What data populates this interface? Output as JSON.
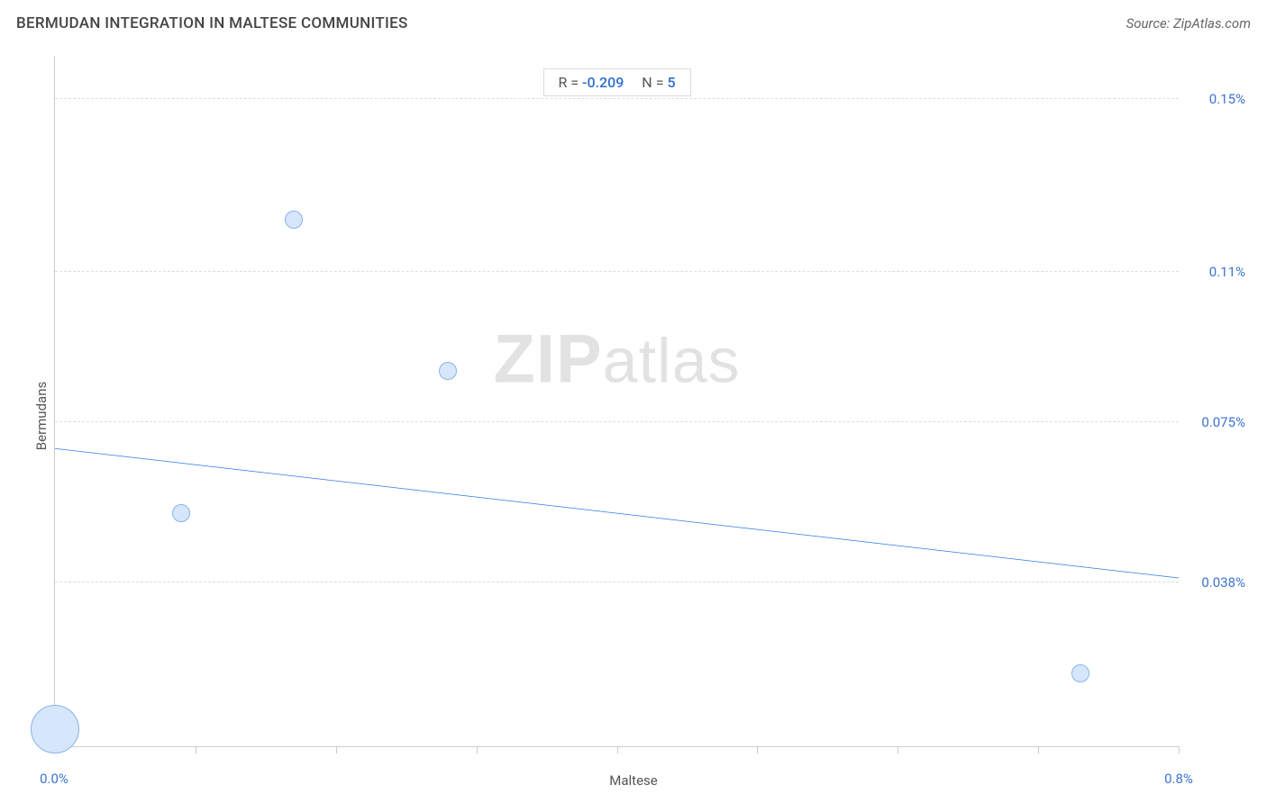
{
  "header": {
    "title": "BERMUDAN INTEGRATION IN MALTESE COMMUNITIES",
    "source": "Source: ZipAtlas.com"
  },
  "chart": {
    "type": "scatter",
    "x_label": "Maltese",
    "y_label": "Bermudans",
    "background_color": "#ffffff",
    "grid_color": "#dddddd",
    "axis_color": "#cccccc",
    "tick_label_color": "#3b73d1",
    "axis_label_color": "#555555",
    "title_color": "#444444",
    "title_fontsize": 17,
    "label_fontsize": 15,
    "tick_fontsize": 15,
    "xlim": [
      0.0,
      0.8
    ],
    "ylim": [
      0.0,
      0.16
    ],
    "x_ticks": [
      0.0,
      0.1,
      0.2,
      0.3,
      0.4,
      0.5,
      0.6,
      0.7,
      0.8
    ],
    "x_tick_labels_shown": {
      "0.0": "0.0%",
      "0.8": "0.8%"
    },
    "y_gridlines": [
      0.038,
      0.075,
      0.11,
      0.15
    ],
    "y_tick_labels": {
      "0.038": "0.038%",
      "0.075": "0.075%",
      "0.11": "0.11%",
      "0.15": "0.15%"
    },
    "points": [
      {
        "x": 0.0,
        "y": 0.004,
        "size": 54
      },
      {
        "x": 0.09,
        "y": 0.054,
        "size": 20
      },
      {
        "x": 0.17,
        "y": 0.122,
        "size": 20
      },
      {
        "x": 0.28,
        "y": 0.087,
        "size": 20
      },
      {
        "x": 0.73,
        "y": 0.017,
        "size": 20
      }
    ],
    "bubble_fill": "#d6e6fb",
    "bubble_stroke": "#8ab3ea",
    "trend_line": {
      "x1": 0.0,
      "y1": 0.069,
      "x2": 0.8,
      "y2": 0.039,
      "color": "#2f7ae5",
      "width": 3
    },
    "stats": {
      "r_label": "R =",
      "r_value": "-0.209",
      "n_label": "N =",
      "n_value": "5"
    },
    "watermark": {
      "zip": "ZIP",
      "atlas": "atlas"
    }
  }
}
